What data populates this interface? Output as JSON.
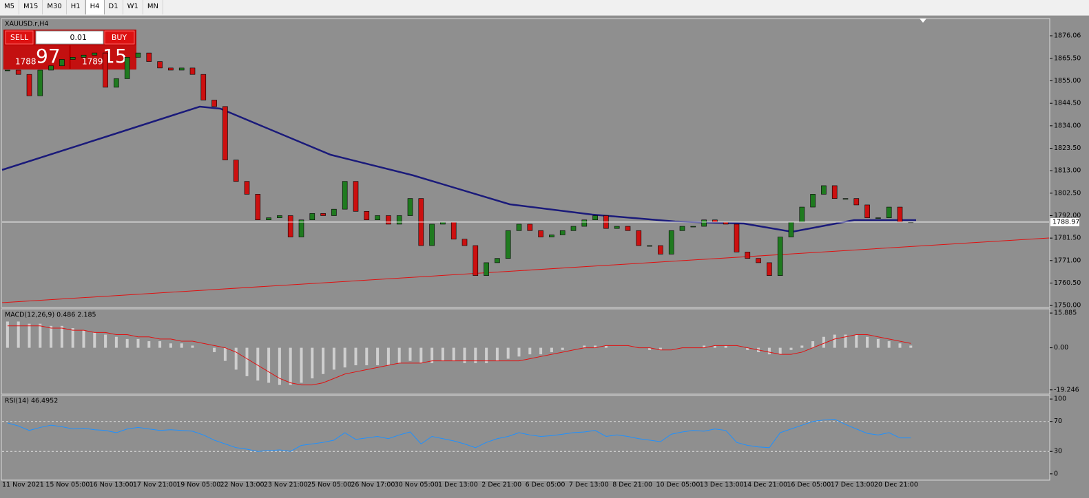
{
  "toolbar": {
    "timeframes": [
      "M5",
      "M15",
      "M30",
      "H1",
      "H4",
      "D1",
      "W1",
      "MN"
    ],
    "active": "H4"
  },
  "chart": {
    "symbol_label": "XAUUSD.r,H4",
    "trade_panel": {
      "sell": "SELL",
      "buy": "BUY",
      "lot": "0.01",
      "sell_price_big": "1788",
      "sell_price_small": "97",
      "buy_price_big": "1789",
      "buy_price_small": "15"
    },
    "price_axis": {
      "ylim": [
        1749.4,
        1884.1
      ],
      "ticks": [
        1876.06,
        {
          "value": 1865.5,
          "label": "1865.50"
        },
        {
          "value": 1855,
          "label": "1855.00"
        },
        {
          "value": 1844.5,
          "label": "1844.50"
        },
        {
          "value": 1834,
          "label": "1834.00"
        },
        {
          "value": 1823.5,
          "label": "1823.50"
        },
        {
          "value": 1813,
          "label": "1813.00"
        },
        {
          "value": 1802.5,
          "label": "1802.50"
        },
        {
          "value": 1792,
          "label": "1792.00"
        },
        {
          "value": 1781.5,
          "label": "1781.50"
        },
        {
          "value": 1771,
          "label": "1771.00"
        },
        {
          "value": 1760.5,
          "label": "1760.50"
        },
        {
          "value": 1750,
          "label": "1750.00"
        }
      ],
      "current": 1788.97
    },
    "time_labels": [
      "11 Nov 2021",
      "15 Nov 05:00",
      "16 Nov 13:00",
      "17 Nov 21:00",
      "19 Nov 05:00",
      "22 Nov 13:00",
      "23 Nov 21:00",
      "25 Nov 05:00",
      "26 Nov 17:00",
      "30 Nov 05:00",
      "1 Dec 13:00",
      "2 Dec 21:00",
      "6 Dec 05:00",
      "7 Dec 13:00",
      "8 Dec 21:00",
      "10 Dec 05:00",
      "13 Dec 13:00",
      "14 Dec 21:00",
      "16 Dec 05:00",
      "17 Dec 13:00",
      "20 Dec 21:00"
    ],
    "candles": {
      "close": [
        1860,
        1858,
        1848,
        1860,
        1862,
        1865,
        1866,
        1867,
        1868,
        1852,
        1856,
        1866,
        1868,
        1864,
        1861,
        1860,
        1861,
        1858,
        1846,
        1843,
        1818,
        1808,
        1802,
        1790,
        1791,
        1792,
        1782,
        1790,
        1793,
        1792,
        1795,
        1808,
        1794,
        1790,
        1792,
        1788,
        1792,
        1800,
        1778,
        1788,
        1789,
        1781,
        1778,
        1764,
        1770,
        1772,
        1785,
        1788,
        1785,
        1782,
        1783,
        1785,
        1787,
        1790,
        1792,
        1786,
        1787,
        1785,
        1778,
        1778,
        1774,
        1785,
        1787,
        1787,
        1790,
        1789,
        1788,
        1775,
        1772,
        1770,
        1764,
        1782,
        1789,
        1796,
        1802,
        1806,
        1800,
        1800,
        1797,
        1791,
        1791,
        1796,
        1789,
        1789
      ]
    },
    "macd": {
      "label": "MACD(12,26,9) 0.486 2.185",
      "ylim": [
        -21.2,
        17.8
      ],
      "ticks": [
        15.885,
        {
          "value": 0,
          "label": "0.00"
        },
        -19.246
      ],
      "histogram": [
        12,
        12,
        11,
        11,
        10,
        10,
        9,
        8,
        7,
        6,
        5,
        4,
        4,
        3,
        3,
        2,
        2,
        1,
        0,
        -2,
        -6,
        -10,
        -13,
        -15,
        -16,
        -17,
        -17,
        -16,
        -14,
        -12,
        -10,
        -9,
        -8,
        -8,
        -8,
        -8,
        -7,
        -6,
        -7,
        -7,
        -6,
        -6,
        -7,
        -7,
        -7,
        -6,
        -5,
        -4,
        -3,
        -3,
        -2,
        -1,
        0,
        1,
        1,
        1,
        0,
        0,
        0,
        -1,
        -1,
        0,
        0,
        0,
        1,
        1,
        1,
        0,
        -1,
        -2,
        -3,
        -3,
        -1,
        1,
        3,
        5,
        6,
        6,
        6,
        5,
        4,
        3,
        2,
        1
      ],
      "signal": [
        10,
        10,
        10,
        10,
        9,
        9,
        8,
        8,
        7,
        7,
        6,
        6,
        5,
        5,
        4,
        4,
        3,
        3,
        2,
        1,
        0,
        -2,
        -5,
        -8,
        -11,
        -14,
        -16,
        -17,
        -17,
        -16,
        -14,
        -12,
        -11,
        -10,
        -9,
        -8,
        -7,
        -7,
        -7,
        -6,
        -6,
        -6,
        -6,
        -6,
        -6,
        -6,
        -6,
        -6,
        -5,
        -4,
        -3,
        -2,
        -1,
        0,
        0,
        1,
        1,
        1,
        0,
        0,
        -1,
        -1,
        0,
        0,
        0,
        1,
        1,
        1,
        0,
        -1,
        -2,
        -3,
        -3,
        -2,
        0,
        2,
        4,
        5,
        6,
        6,
        5,
        4,
        3,
        2
      ]
    },
    "rsi": {
      "label": "RSI(14) 46.4952",
      "ylim": [
        -8.4,
        104.7
      ],
      "ticks": [
        100,
        70,
        30,
        0
      ],
      "levels": [
        70,
        30
      ],
      "values": [
        68,
        64,
        58,
        62,
        65,
        63,
        60,
        61,
        59,
        58,
        55,
        60,
        62,
        60,
        58,
        59,
        58,
        57,
        52,
        45,
        40,
        35,
        33,
        30,
        31,
        32,
        30,
        38,
        40,
        42,
        45,
        55,
        46,
        48,
        50,
        47,
        52,
        56,
        40,
        50,
        47,
        44,
        40,
        35,
        42,
        47,
        50,
        55,
        52,
        50,
        51,
        53,
        55,
        56,
        58,
        50,
        52,
        50,
        47,
        45,
        43,
        53,
        56,
        58,
        57,
        60,
        58,
        42,
        38,
        36,
        35,
        55,
        60,
        65,
        70,
        72,
        73,
        66,
        60,
        54,
        52,
        55,
        48,
        48
      ]
    }
  }
}
